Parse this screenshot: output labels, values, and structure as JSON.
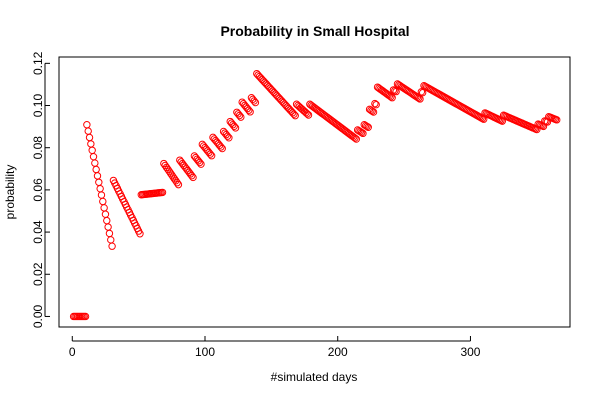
{
  "chart_data": {
    "type": "scatter",
    "title": "Probability in Small Hospital",
    "xlabel": "#simulated days",
    "ylabel": "probability",
    "xlim": [
      -10,
      375
    ],
    "ylim": [
      -0.005,
      0.123
    ],
    "xticks": [
      0,
      100,
      200,
      300
    ],
    "xtick_labels": [
      "0",
      "100",
      "200",
      "300"
    ],
    "yticks": [
      0,
      0.02,
      0.04,
      0.06,
      0.08,
      0.1,
      0.12
    ],
    "ytick_labels": [
      "0.00",
      "0.02",
      "0.04",
      "0.06",
      "0.08",
      "0.10",
      "0.12"
    ],
    "marker": "open-circle",
    "color": "#ff0000",
    "grid": false,
    "legend": "none",
    "segments": [
      {
        "x_start": 1,
        "x_end": 10,
        "y_start": 0.0,
        "y_end": 0.0
      },
      {
        "x_start": 11,
        "x_end": 30,
        "y_start": 0.0909,
        "y_end": 0.0333
      },
      {
        "x_start": 31,
        "x_end": 51,
        "y_start": 0.0645,
        "y_end": 0.0392
      },
      {
        "x_start": 52,
        "x_end": 68,
        "y_start": 0.0577,
        "y_end": 0.0588
      },
      {
        "x_start": 69,
        "x_end": 80,
        "y_start": 0.0725,
        "y_end": 0.0625
      },
      {
        "x_start": 81,
        "x_end": 91,
        "y_start": 0.0741,
        "y_end": 0.0659
      },
      {
        "x_start": 92,
        "x_end": 97,
        "y_start": 0.0761,
        "y_end": 0.0722
      },
      {
        "x_start": 98,
        "x_end": 105,
        "y_start": 0.0816,
        "y_end": 0.0762
      },
      {
        "x_start": 106,
        "x_end": 113,
        "y_start": 0.0849,
        "y_end": 0.0796
      },
      {
        "x_start": 114,
        "x_end": 118,
        "y_start": 0.0877,
        "y_end": 0.0847
      },
      {
        "x_start": 119,
        "x_end": 123,
        "y_start": 0.0924,
        "y_end": 0.0894
      },
      {
        "x_start": 124,
        "x_end": 127,
        "y_start": 0.0968,
        "y_end": 0.0945
      },
      {
        "x_start": 128,
        "x_end": 134,
        "y_start": 0.1016,
        "y_end": 0.097
      },
      {
        "x_start": 135,
        "x_end": 138,
        "y_start": 0.1037,
        "y_end": 0.1014
      },
      {
        "x_start": 139,
        "x_end": 168,
        "y_start": 0.1151,
        "y_end": 0.0952
      },
      {
        "x_start": 169,
        "x_end": 178,
        "y_start": 0.1006,
        "y_end": 0.0955
      },
      {
        "x_start": 179,
        "x_end": 214,
        "y_start": 0.1006,
        "y_end": 0.0841
      },
      {
        "x_start": 215,
        "x_end": 219,
        "y_start": 0.0884,
        "y_end": 0.0868
      },
      {
        "x_start": 220,
        "x_end": 223,
        "y_start": 0.0909,
        "y_end": 0.0897
      },
      {
        "x_start": 224,
        "x_end": 227,
        "y_start": 0.0982,
        "y_end": 0.0969
      },
      {
        "x_start": 228,
        "x_end": 229,
        "y_start": 0.1009,
        "y_end": 0.1004
      },
      {
        "x_start": 230,
        "x_end": 241,
        "y_start": 0.1087,
        "y_end": 0.1037
      },
      {
        "x_start": 242,
        "x_end": 244,
        "y_start": 0.1074,
        "y_end": 0.1066
      },
      {
        "x_start": 245,
        "x_end": 262,
        "y_start": 0.1102,
        "y_end": 0.1031
      },
      {
        "x_start": 263,
        "x_end": 264,
        "y_start": 0.1065,
        "y_end": 0.1061
      },
      {
        "x_start": 265,
        "x_end": 310,
        "y_start": 0.1094,
        "y_end": 0.0935
      },
      {
        "x_start": 311,
        "x_end": 324,
        "y_start": 0.0965,
        "y_end": 0.0926
      },
      {
        "x_start": 325,
        "x_end": 350,
        "y_start": 0.0954,
        "y_end": 0.0886
      },
      {
        "x_start": 351,
        "x_end": 355,
        "y_start": 0.0912,
        "y_end": 0.0901
      },
      {
        "x_start": 356,
        "x_end": 358,
        "y_start": 0.0927,
        "y_end": 0.0922
      },
      {
        "x_start": 359,
        "x_end": 365,
        "y_start": 0.0947,
        "y_end": 0.0932
      }
    ]
  }
}
